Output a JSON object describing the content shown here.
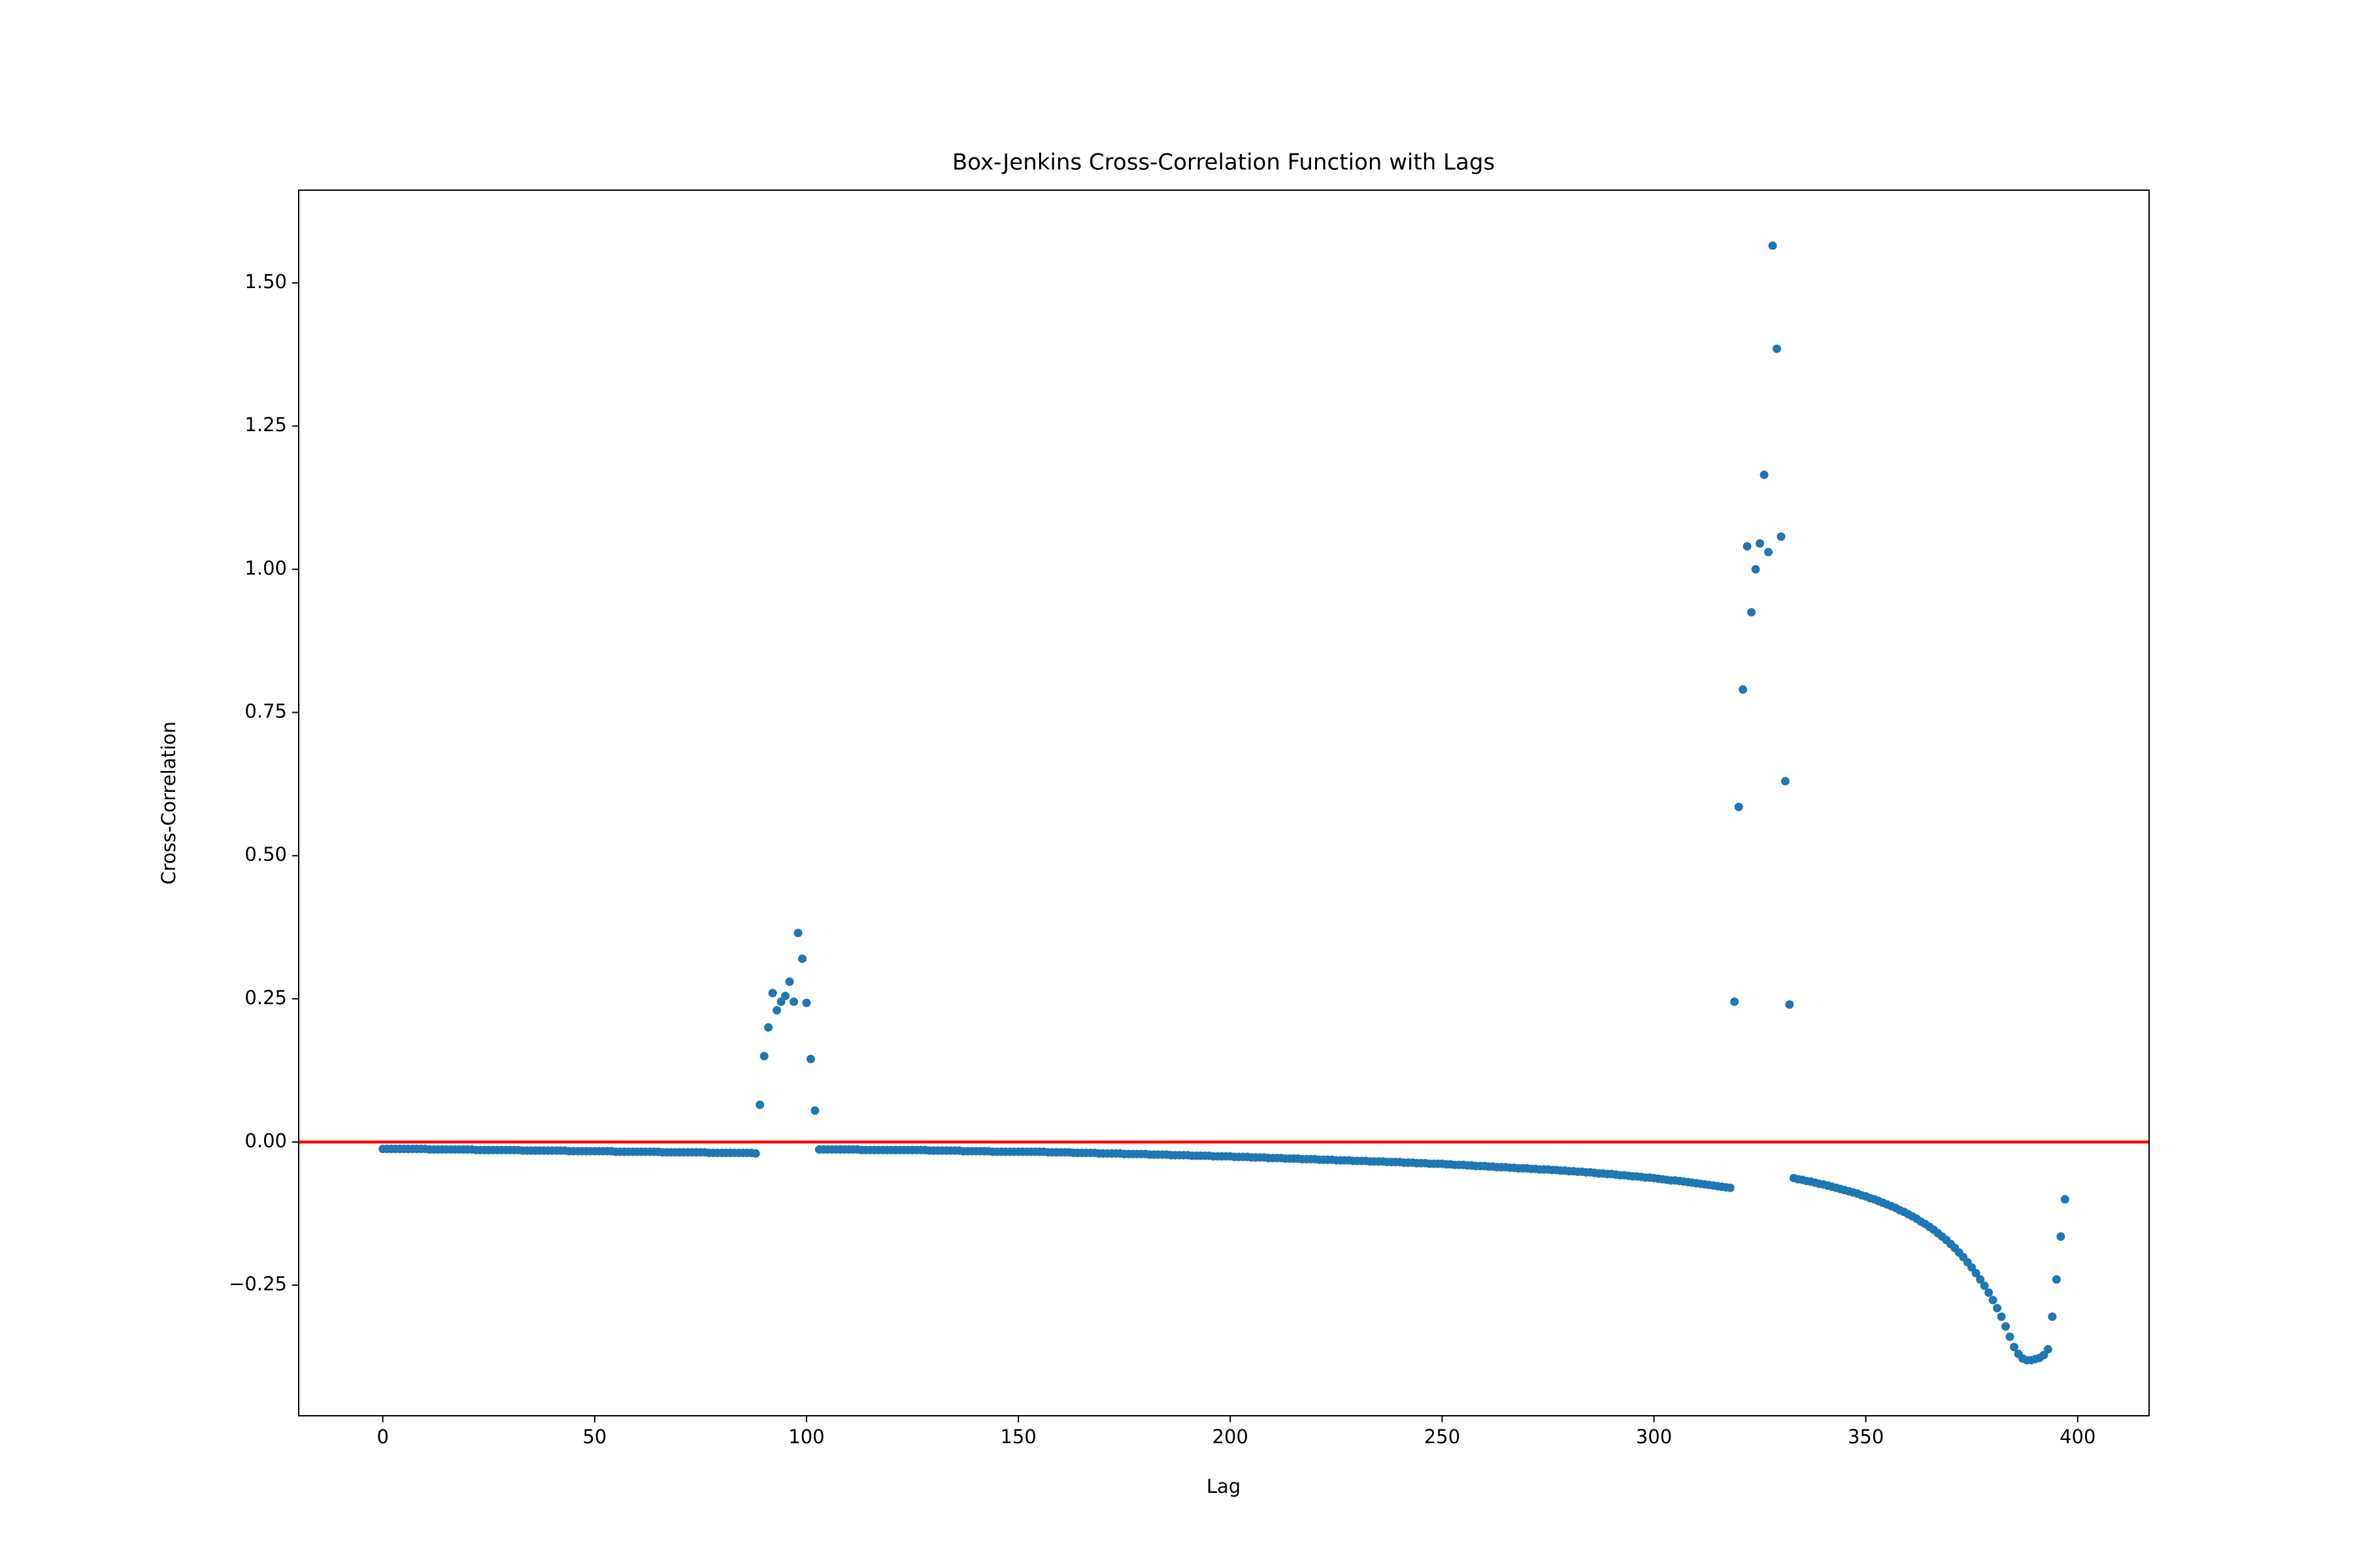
{
  "chart_data": {
    "type": "scatter",
    "title": "Box-Jenkins Cross-Correlation Function with Lags",
    "x_label": "Lag",
    "y_label": "Cross-Correlation",
    "color": "#1f77b4",
    "reference_line": {
      "value": 0,
      "color": "#ff0000"
    },
    "xlim": [
      -19.85,
      416.85
    ],
    "ylim": [
      -0.478,
      1.662
    ],
    "xticks": [
      0,
      50,
      100,
      150,
      200,
      250,
      300,
      350,
      400
    ],
    "yticks": [
      {
        "value": -0.25,
        "label": "−0.25"
      },
      {
        "value": 0,
        "label": "0.00"
      },
      0.25,
      {
        "value": 0.5,
        "label": "0.50"
      },
      0.75,
      {
        "value": 1,
        "label": "1.00"
      },
      1.25,
      {
        "value": 1.5,
        "label": "1.50"
      }
    ],
    "x": [
      0,
      1,
      2,
      3,
      4,
      5,
      6,
      7,
      8,
      9,
      10,
      11,
      12,
      13,
      14,
      15,
      16,
      17,
      18,
      19,
      20,
      21,
      22,
      23,
      24,
      25,
      26,
      27,
      28,
      29,
      30,
      31,
      32,
      33,
      34,
      35,
      36,
      37,
      38,
      39,
      40,
      41,
      42,
      43,
      44,
      45,
      46,
      47,
      48,
      49,
      50,
      51,
      52,
      53,
      54,
      55,
      56,
      57,
      58,
      59,
      60,
      61,
      62,
      63,
      64,
      65,
      66,
      67,
      68,
      69,
      70,
      71,
      72,
      73,
      74,
      75,
      76,
      77,
      78,
      79,
      80,
      81,
      82,
      83,
      84,
      85,
      86,
      87,
      88,
      89,
      90,
      91,
      92,
      93,
      94,
      95,
      96,
      97,
      98,
      99,
      100,
      101,
      102,
      103,
      104,
      105,
      106,
      107,
      108,
      109,
      110,
      111,
      112,
      113,
      114,
      115,
      116,
      117,
      118,
      119,
      120,
      121,
      122,
      123,
      124,
      125,
      126,
      127,
      128,
      129,
      130,
      131,
      132,
      133,
      134,
      135,
      136,
      137,
      138,
      139,
      140,
      141,
      142,
      143,
      144,
      145,
      146,
      147,
      148,
      149,
      150,
      151,
      152,
      153,
      154,
      155,
      156,
      157,
      158,
      159,
      160,
      161,
      162,
      163,
      164,
      165,
      166,
      167,
      168,
      169,
      170,
      171,
      172,
      173,
      174,
      175,
      176,
      177,
      178,
      179,
      180,
      181,
      182,
      183,
      184,
      185,
      186,
      187,
      188,
      189,
      190,
      191,
      192,
      193,
      194,
      195,
      196,
      197,
      198,
      199,
      200,
      201,
      202,
      203,
      204,
      205,
      206,
      207,
      208,
      209,
      210,
      211,
      212,
      213,
      214,
      215,
      216,
      217,
      218,
      219,
      220,
      221,
      222,
      223,
      224,
      225,
      226,
      227,
      228,
      229,
      230,
      231,
      232,
      233,
      234,
      235,
      236,
      237,
      238,
      239,
      240,
      241,
      242,
      243,
      244,
      245,
      246,
      247,
      248,
      249,
      250,
      251,
      252,
      253,
      254,
      255,
      256,
      257,
      258,
      259,
      260,
      261,
      262,
      263,
      264,
      265,
      266,
      267,
      268,
      269,
      270,
      271,
      272,
      273,
      274,
      275,
      276,
      277,
      278,
      279,
      280,
      281,
      282,
      283,
      284,
      285,
      286,
      287,
      288,
      289,
      290,
      291,
      292,
      293,
      294,
      295,
      296,
      297,
      298,
      299,
      300,
      301,
      302,
      303,
      304,
      305,
      306,
      307,
      308,
      309,
      310,
      311,
      312,
      313,
      314,
      315,
      316,
      317,
      318,
      319,
      320,
      321,
      322,
      323,
      324,
      325,
      326,
      327,
      328,
      329,
      330,
      331,
      332,
      333,
      334,
      335,
      336,
      337,
      338,
      339,
      340,
      341,
      342,
      343,
      344,
      345,
      346,
      347,
      348,
      349,
      350,
      351,
      352,
      353,
      354,
      355,
      356,
      357,
      358,
      359,
      360,
      361,
      362,
      363,
      364,
      365,
      366,
      367,
      368,
      369,
      370,
      371,
      372,
      373,
      374,
      375,
      376,
      377,
      378,
      379,
      380,
      381,
      382,
      383,
      384,
      385,
      386,
      387,
      388,
      389,
      390,
      391,
      392,
      393,
      394,
      395,
      396,
      397
    ],
    "values": [
      -0.012,
      -0.012,
      -0.012,
      -0.012,
      -0.012,
      -0.012,
      -0.012,
      -0.012,
      -0.012,
      -0.012,
      -0.012,
      -0.013,
      -0.013,
      -0.013,
      -0.013,
      -0.013,
      -0.013,
      -0.013,
      -0.013,
      -0.013,
      -0.013,
      -0.013,
      -0.014,
      -0.014,
      -0.014,
      -0.014,
      -0.014,
      -0.014,
      -0.014,
      -0.014,
      -0.014,
      -0.014,
      -0.014,
      -0.015,
      -0.015,
      -0.015,
      -0.015,
      -0.015,
      -0.015,
      -0.015,
      -0.015,
      -0.015,
      -0.015,
      -0.015,
      -0.016,
      -0.016,
      -0.016,
      -0.016,
      -0.016,
      -0.016,
      -0.016,
      -0.016,
      -0.016,
      -0.016,
      -0.016,
      -0.017,
      -0.017,
      -0.017,
      -0.017,
      -0.017,
      -0.017,
      -0.017,
      -0.017,
      -0.017,
      -0.017,
      -0.017,
      -0.018,
      -0.018,
      -0.018,
      -0.018,
      -0.018,
      -0.018,
      -0.018,
      -0.018,
      -0.018,
      -0.018,
      -0.018,
      -0.019,
      -0.019,
      -0.019,
      -0.019,
      -0.019,
      -0.019,
      -0.019,
      -0.019,
      -0.019,
      -0.019,
      -0.019,
      -0.02,
      0.065,
      0.15,
      0.2,
      0.26,
      0.23,
      0.245,
      0.255,
      0.28,
      0.245,
      0.365,
      0.32,
      0.243,
      0.145,
      0.055,
      -0.013,
      -0.013,
      -0.013,
      -0.013,
      -0.013,
      -0.013,
      -0.013,
      -0.013,
      -0.013,
      -0.013,
      -0.014,
      -0.014,
      -0.014,
      -0.014,
      -0.014,
      -0.014,
      -0.014,
      -0.014,
      -0.014,
      -0.014,
      -0.014,
      -0.014,
      -0.014,
      -0.014,
      -0.014,
      -0.014,
      -0.015,
      -0.015,
      -0.015,
      -0.015,
      -0.015,
      -0.015,
      -0.015,
      -0.015,
      -0.016,
      -0.016,
      -0.016,
      -0.016,
      -0.016,
      -0.016,
      -0.016,
      -0.017,
      -0.017,
      -0.017,
      -0.017,
      -0.017,
      -0.017,
      -0.017,
      -0.017,
      -0.017,
      -0.017,
      -0.017,
      -0.017,
      -0.017,
      -0.018,
      -0.018,
      -0.018,
      -0.018,
      -0.018,
      -0.018,
      -0.019,
      -0.019,
      -0.019,
      -0.019,
      -0.019,
      -0.019,
      -0.02,
      -0.02,
      -0.02,
      -0.02,
      -0.02,
      -0.02,
      -0.021,
      -0.021,
      -0.021,
      -0.021,
      -0.021,
      -0.021,
      -0.022,
      -0.022,
      -0.022,
      -0.022,
      -0.022,
      -0.023,
      -0.023,
      -0.023,
      -0.023,
      -0.023,
      -0.024,
      -0.024,
      -0.024,
      -0.024,
      -0.024,
      -0.025,
      -0.025,
      -0.025,
      -0.025,
      -0.025,
      -0.026,
      -0.026,
      -0.026,
      -0.026,
      -0.027,
      -0.027,
      -0.027,
      -0.027,
      -0.028,
      -0.028,
      -0.028,
      -0.028,
      -0.029,
      -0.029,
      -0.029,
      -0.029,
      -0.03,
      -0.03,
      -0.03,
      -0.03,
      -0.031,
      -0.031,
      -0.031,
      -0.031,
      -0.032,
      -0.032,
      -0.032,
      -0.032,
      -0.033,
      -0.033,
      -0.033,
      -0.033,
      -0.034,
      -0.034,
      -0.034,
      -0.034,
      -0.035,
      -0.035,
      -0.035,
      -0.035,
      -0.036,
      -0.036,
      -0.036,
      -0.037,
      -0.037,
      -0.037,
      -0.038,
      -0.038,
      -0.038,
      -0.038,
      -0.039,
      -0.039,
      -0.04,
      -0.04,
      -0.04,
      -0.041,
      -0.041,
      -0.042,
      -0.042,
      -0.042,
      -0.043,
      -0.043,
      -0.044,
      -0.044,
      -0.044,
      -0.045,
      -0.045,
      -0.046,
      -0.046,
      -0.046,
      -0.047,
      -0.047,
      -0.048,
      -0.048,
      -0.048,
      -0.049,
      -0.049,
      -0.05,
      -0.05,
      -0.051,
      -0.051,
      -0.052,
      -0.052,
      -0.053,
      -0.053,
      -0.054,
      -0.055,
      -0.055,
      -0.056,
      -0.056,
      -0.057,
      -0.058,
      -0.058,
      -0.059,
      -0.06,
      -0.06,
      -0.061,
      -0.062,
      -0.062,
      -0.063,
      -0.064,
      -0.065,
      -0.066,
      -0.067,
      -0.067,
      -0.068,
      -0.069,
      -0.07,
      -0.071,
      -0.072,
      -0.073,
      -0.074,
      -0.075,
      -0.076,
      -0.077,
      -0.078,
      -0.079,
      -0.08,
      0.245,
      0.585,
      0.79,
      1.04,
      0.925,
      1.0,
      1.045,
      1.165,
      1.03,
      1.565,
      1.385,
      1.057,
      0.63,
      0.24,
      -0.063,
      -0.065,
      -0.066,
      -0.068,
      -0.069,
      -0.071,
      -0.073,
      -0.074,
      -0.076,
      -0.078,
      -0.08,
      -0.082,
      -0.084,
      -0.086,
      -0.088,
      -0.09,
      -0.093,
      -0.095,
      -0.098,
      -0.1,
      -0.103,
      -0.106,
      -0.109,
      -0.112,
      -0.115,
      -0.119,
      -0.122,
      -0.126,
      -0.13,
      -0.134,
      -0.139,
      -0.143,
      -0.148,
      -0.153,
      -0.159,
      -0.165,
      -0.171,
      -0.178,
      -0.185,
      -0.193,
      -0.201,
      -0.21,
      -0.219,
      -0.229,
      -0.24,
      -0.251,
      -0.263,
      -0.276,
      -0.29,
      -0.305,
      -0.322,
      -0.34,
      -0.358,
      -0.37,
      -0.378,
      -0.381,
      -0.381,
      -0.379,
      -0.377,
      -0.372,
      -0.362,
      -0.305,
      -0.24,
      -0.165,
      -0.1
    ]
  }
}
